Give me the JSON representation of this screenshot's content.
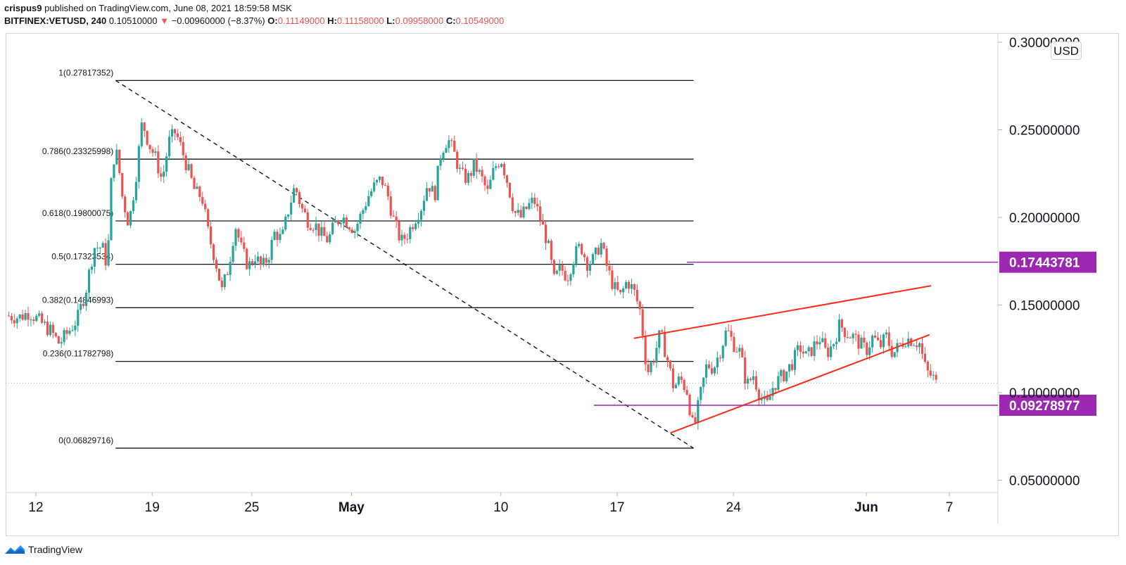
{
  "header": {
    "author": "crispus9",
    "published_text": "published on TradingView.com, June 08, 2021 18:59:58 MSK",
    "symbol": "BITFINEX:VETUSD, 240",
    "last_price": "0.10510000",
    "change": "−0.00960000 (−8.37%)",
    "open_label": "O:",
    "open": "0.11149000",
    "high_label": "H:",
    "high": "0.11158000",
    "low_label": "L:",
    "low": "0.09958000",
    "close_label": "C:",
    "close": "0.10549000"
  },
  "footer": {
    "brand": "TradingView"
  },
  "colors": {
    "up": "#26a69a",
    "down": "#ef5350",
    "trend": "#ff2a1a",
    "marker": "#9c27b0",
    "fib": "#131722"
  },
  "chart_data": {
    "type": "candlestick",
    "title": "BITFINEX:VETUSD, 240",
    "unit": "USD",
    "ylim": [
      0.0455,
      0.3025
    ],
    "y_ticks": [
      {
        "value": 0.3,
        "label": "0.30000000"
      },
      {
        "value": 0.25,
        "label": "0.25000000"
      },
      {
        "value": 0.2,
        "label": "0.20000000"
      },
      {
        "value": 0.15,
        "label": "0.15000000"
      },
      {
        "value": 0.1,
        "label": "0.10000000"
      },
      {
        "value": 0.05,
        "label": "0.05000000"
      }
    ],
    "x_start_day": 10.2,
    "x_end_day": 67.5,
    "x_ticks": [
      {
        "day": 12,
        "label": "12",
        "bold": false
      },
      {
        "day": 19,
        "label": "19",
        "bold": false
      },
      {
        "day": 25,
        "label": "25",
        "bold": false
      },
      {
        "day": 31,
        "label": "May",
        "bold": true
      },
      {
        "day": 40,
        "label": "10",
        "bold": false
      },
      {
        "day": 47,
        "label": "17",
        "bold": false
      },
      {
        "day": 54,
        "label": "24",
        "bold": false
      },
      {
        "day": 62,
        "label": "Jun",
        "bold": true
      },
      {
        "day": 67,
        "label": "7",
        "bold": false
      }
    ],
    "fib_levels": [
      {
        "ratio": "1",
        "value": 0.27817352,
        "label": "1(0.27817352)"
      },
      {
        "ratio": "0.786",
        "value": 0.23325998,
        "label": "0.786(0.23325998)"
      },
      {
        "ratio": "0.618",
        "value": 0.19800075,
        "label": "0.618(0.19800075)"
      },
      {
        "ratio": "0.5",
        "value": 0.17323534,
        "label": "0.5(0.17323534)"
      },
      {
        "ratio": "0.382",
        "value": 0.14846993,
        "label": "0.382(0.14846993)"
      },
      {
        "ratio": "0.236",
        "value": 0.11782798,
        "label": "0.236(0.11782798)"
      },
      {
        "ratio": "0",
        "value": 0.06829716,
        "label": "0(0.06829716)"
      }
    ],
    "fib_range_days": [
      16.8,
      51.6
    ],
    "fib_diagonal": {
      "from": [
        16.8,
        0.27817352
      ],
      "to": [
        51.6,
        0.06829716
      ]
    },
    "trend_lines": [
      {
        "from": [
          48.0,
          0.131
        ],
        "to": [
          65.9,
          0.161
        ]
      },
      {
        "from": [
          50.2,
          0.077
        ],
        "to": [
          65.8,
          0.133
        ]
      }
    ],
    "price_markers": [
      {
        "value": 0.17443781,
        "label": "0.17443781",
        "from_day": 51.2
      },
      {
        "value": 0.09278977,
        "label": "0.09278977",
        "from_day": 45.6
      }
    ],
    "current_price": 0.10549,
    "path": [
      [
        10.2,
        0.144
      ],
      [
        11.0,
        0.143
      ],
      [
        11.6,
        0.146
      ],
      [
        12.3,
        0.14
      ],
      [
        12.9,
        0.135
      ],
      [
        13.4,
        0.128
      ],
      [
        13.9,
        0.134
      ],
      [
        14.5,
        0.142
      ],
      [
        15.0,
        0.158
      ],
      [
        15.5,
        0.183
      ],
      [
        16.0,
        0.183
      ],
      [
        16.3,
        0.172
      ],
      [
        16.6,
        0.233
      ],
      [
        16.9,
        0.236
      ],
      [
        17.2,
        0.212
      ],
      [
        17.6,
        0.196
      ],
      [
        18.0,
        0.222
      ],
      [
        18.4,
        0.255
      ],
      [
        18.8,
        0.242
      ],
      [
        19.2,
        0.234
      ],
      [
        19.6,
        0.221
      ],
      [
        20.0,
        0.243
      ],
      [
        20.4,
        0.249
      ],
      [
        20.8,
        0.238
      ],
      [
        21.2,
        0.226
      ],
      [
        21.6,
        0.214
      ],
      [
        22.0,
        0.212
      ],
      [
        22.4,
        0.19
      ],
      [
        22.8,
        0.176
      ],
      [
        23.2,
        0.158
      ],
      [
        23.6,
        0.172
      ],
      [
        24.0,
        0.196
      ],
      [
        24.4,
        0.181
      ],
      [
        24.8,
        0.172
      ],
      [
        25.2,
        0.178
      ],
      [
        25.6,
        0.171
      ],
      [
        26.0,
        0.178
      ],
      [
        26.4,
        0.192
      ],
      [
        26.8,
        0.187
      ],
      [
        27.2,
        0.204
      ],
      [
        27.6,
        0.218
      ],
      [
        28.0,
        0.205
      ],
      [
        28.4,
        0.198
      ],
      [
        28.8,
        0.196
      ],
      [
        29.2,
        0.19
      ],
      [
        29.6,
        0.187
      ],
      [
        30.0,
        0.196
      ],
      [
        30.4,
        0.201
      ],
      [
        30.8,
        0.197
      ],
      [
        31.2,
        0.193
      ],
      [
        31.6,
        0.202
      ],
      [
        32.0,
        0.212
      ],
      [
        32.4,
        0.218
      ],
      [
        32.8,
        0.222
      ],
      [
        33.2,
        0.212
      ],
      [
        33.6,
        0.196
      ],
      [
        34.0,
        0.186
      ],
      [
        34.4,
        0.191
      ],
      [
        34.8,
        0.199
      ],
      [
        35.2,
        0.206
      ],
      [
        35.6,
        0.22
      ],
      [
        36.0,
        0.212
      ],
      [
        36.4,
        0.238
      ],
      [
        36.8,
        0.245
      ],
      [
        37.2,
        0.236
      ],
      [
        37.6,
        0.224
      ],
      [
        38.0,
        0.222
      ],
      [
        38.4,
        0.23
      ],
      [
        38.8,
        0.223
      ],
      [
        39.2,
        0.214
      ],
      [
        39.6,
        0.228
      ],
      [
        40.0,
        0.234
      ],
      [
        40.4,
        0.22
      ],
      [
        40.8,
        0.203
      ],
      [
        41.2,
        0.2
      ],
      [
        41.6,
        0.206
      ],
      [
        42.0,
        0.21
      ],
      [
        42.4,
        0.198
      ],
      [
        42.8,
        0.186
      ],
      [
        43.2,
        0.164
      ],
      [
        43.6,
        0.171
      ],
      [
        44.0,
        0.166
      ],
      [
        44.4,
        0.178
      ],
      [
        44.8,
        0.184
      ],
      [
        45.2,
        0.174
      ],
      [
        45.6,
        0.176
      ],
      [
        46.0,
        0.186
      ],
      [
        46.4,
        0.171
      ],
      [
        46.8,
        0.16
      ],
      [
        47.2,
        0.155
      ],
      [
        47.6,
        0.164
      ],
      [
        48.0,
        0.158
      ],
      [
        48.4,
        0.146
      ],
      [
        48.8,
        0.111
      ],
      [
        49.2,
        0.12
      ],
      [
        49.6,
        0.134
      ],
      [
        50.0,
        0.12
      ],
      [
        50.4,
        0.103
      ],
      [
        50.8,
        0.108
      ],
      [
        51.2,
        0.101
      ],
      [
        51.6,
        0.078
      ],
      [
        52.0,
        0.098
      ],
      [
        52.4,
        0.116
      ],
      [
        52.8,
        0.114
      ],
      [
        53.2,
        0.124
      ],
      [
        53.6,
        0.136
      ],
      [
        54.0,
        0.128
      ],
      [
        54.4,
        0.123
      ],
      [
        54.8,
        0.104
      ],
      [
        55.2,
        0.11
      ],
      [
        55.6,
        0.098
      ],
      [
        56.0,
        0.092
      ],
      [
        56.4,
        0.104
      ],
      [
        56.8,
        0.108
      ],
      [
        57.2,
        0.112
      ],
      [
        57.6,
        0.118
      ],
      [
        58.0,
        0.126
      ],
      [
        58.4,
        0.12
      ],
      [
        58.8,
        0.126
      ],
      [
        59.2,
        0.131
      ],
      [
        59.6,
        0.122
      ],
      [
        60.0,
        0.128
      ],
      [
        60.4,
        0.139
      ],
      [
        60.8,
        0.134
      ],
      [
        61.2,
        0.132
      ],
      [
        61.6,
        0.128
      ],
      [
        62.0,
        0.124
      ],
      [
        62.4,
        0.132
      ],
      [
        62.8,
        0.126
      ],
      [
        63.2,
        0.132
      ],
      [
        63.6,
        0.122
      ],
      [
        64.0,
        0.127
      ],
      [
        64.4,
        0.131
      ],
      [
        64.8,
        0.13
      ],
      [
        65.2,
        0.128
      ],
      [
        65.6,
        0.112
      ],
      [
        66.0,
        0.109
      ],
      [
        66.2,
        0.105
      ]
    ]
  }
}
